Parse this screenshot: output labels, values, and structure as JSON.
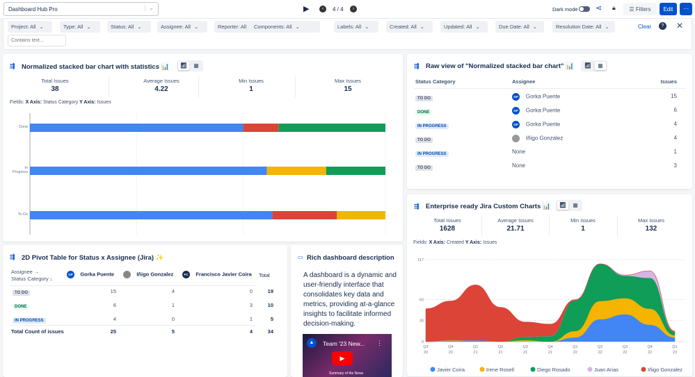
{
  "topbar": {
    "dashboard_name": "Dashboard Hub Pro",
    "page_indicator": "4 / 4",
    "dark_mode_label": "Dark mode",
    "filters_label": "Filters",
    "edit_label": "Edit",
    "more_label": "···"
  },
  "filters": {
    "chips": [
      "Project: All",
      "Type: All",
      "Status: All",
      "Assignee: All",
      "Reporter: All",
      "Components: All",
      "Labels: All",
      "Created: All",
      "Updated: All",
      "Due Date: All",
      "Resolution Date: All"
    ],
    "clear_label": "Clear",
    "text_placeholder": "Contains text..."
  },
  "colors": {
    "blue": "#4285f4",
    "red": "#db4437",
    "yellow": "#f4b400",
    "green": "#0f9d58",
    "lavender": "#d7b4e4",
    "accent": "#0052cc"
  },
  "panel1": {
    "title": "Normalized stacked bar chart with statistics 📊",
    "stats": [
      {
        "label": "Total Issues",
        "value": "38"
      },
      {
        "label": "Average Issues",
        "value": "4.22"
      },
      {
        "label": "Min Issues",
        "value": "1"
      },
      {
        "label": "Max Issues",
        "value": "15"
      }
    ],
    "fields": {
      "x_label": "X Axis:",
      "x_value": "Status Category",
      "y_label": "Y Axis:",
      "y_value": "Issues"
    }
  },
  "chart_data": [
    {
      "type": "bar",
      "orientation": "horizontal",
      "stacked": "normalized",
      "categories": [
        "Done",
        "In Progress",
        "To Do"
      ],
      "xlim": [
        0,
        100
      ],
      "x_ticks": [
        "0",
        "30",
        "60",
        "100"
      ],
      "grid": true,
      "legend_position": "bottom",
      "series": [
        {
          "name": "Gorka Puente",
          "color": "#4285f4",
          "values": [
            6,
            4,
            15
          ]
        },
        {
          "name": "Iñigo Gonzalez",
          "color": "#db4437",
          "values": [
            1,
            0,
            4
          ]
        },
        {
          "name": "None",
          "color": "#f4b400",
          "values": [
            0,
            1,
            3
          ]
        },
        {
          "name": "Francisco Javier Coira",
          "color": "#0f9d58",
          "values": [
            3,
            1,
            0
          ]
        }
      ]
    },
    {
      "type": "area",
      "stacked": true,
      "categories": [
        "Q3 20",
        "Q4 20",
        "Q1 21",
        "Q2 21",
        "Q3 21",
        "Q4 21",
        "Q1 22",
        "Q2 22",
        "Q3 22",
        "Q4 22",
        "Q1 23"
      ],
      "ylim": [
        0,
        117
      ],
      "y_ticks": [
        "0",
        "30",
        "60",
        "117"
      ],
      "grid": true,
      "legend_position": "bottom",
      "series": [
        {
          "name": "Javier Coira",
          "color": "#4285f4",
          "values": [
            0,
            1,
            2,
            0,
            0,
            0,
            6,
            32,
            39,
            24,
            6
          ]
        },
        {
          "name": "Irene Rosell",
          "color": "#f4b400",
          "values": [
            0,
            1,
            0,
            0,
            2,
            0,
            9,
            26,
            23,
            23,
            3
          ]
        },
        {
          "name": "Diego Rosado",
          "color": "#0f9d58",
          "values": [
            0,
            0,
            0,
            0,
            5,
            8,
            44,
            53,
            32,
            44,
            5
          ]
        },
        {
          "name": "Juan Arias",
          "color": "#d7b4e4",
          "values": [
            0,
            0,
            0,
            0,
            0,
            0,
            0,
            0,
            1,
            10,
            0
          ]
        },
        {
          "name": "Iñigo Gonzalez",
          "color": "#db4437",
          "values": [
            47,
            56,
            79,
            49,
            21,
            17,
            1,
            0,
            0,
            0,
            1
          ]
        }
      ]
    }
  ],
  "panel2": {
    "title": "Raw view of \"Normalized stacked bar chart\" 📊",
    "headers": [
      "Status Category",
      "Assignee",
      "Issues"
    ],
    "rows": [
      {
        "status": "TO DO",
        "kind": "todo",
        "assignee": "Gorka Puente",
        "initials": "GP",
        "issues": "15"
      },
      {
        "status": "DONE",
        "kind": "done",
        "assignee": "Gorka Puente",
        "initials": "GP",
        "issues": "6"
      },
      {
        "status": "IN PROGRESS",
        "kind": "prog",
        "assignee": "Gorka Puente",
        "initials": "GP",
        "issues": "4"
      },
      {
        "status": "TO DO",
        "kind": "todo",
        "assignee": "Iñigo Gonzalez",
        "initials": "IG",
        "issues": "4"
      },
      {
        "status": "IN PROGRESS",
        "kind": "prog",
        "assignee": "None",
        "initials": "",
        "issues": "1"
      },
      {
        "status": "TO DO",
        "kind": "todo",
        "assignee": "None",
        "initials": "",
        "issues": "3"
      }
    ]
  },
  "panel3": {
    "title": "Enterprise ready Jira Custom Charts 📊",
    "stats": [
      {
        "label": "Total Issues",
        "value": "1628"
      },
      {
        "label": "Average Issues",
        "value": "21.71"
      },
      {
        "label": "Min Issues",
        "value": "1"
      },
      {
        "label": "Max Issues",
        "value": "132"
      }
    ],
    "fields": {
      "x_label": "X Axis:",
      "x_value": "Created",
      "y_label": "Y Axis:",
      "y_value": "Issues"
    }
  },
  "panel4": {
    "title": "2D Pivot Table for Status x Assignee (Jira) ✨",
    "row_header_1": "Assignee →",
    "row_header_2": "Status Category ↓",
    "columns": [
      {
        "name": "Gorka Puente",
        "initials": "GP",
        "color": "#0052cc"
      },
      {
        "name": "Iñigo Gonzalez",
        "initials": "IG",
        "color": "#888"
      },
      {
        "name": "Francisco Javier Coira",
        "initials": "FC",
        "color": "#172b4d"
      }
    ],
    "total_label": "Total",
    "rows": [
      {
        "status": "TO DO",
        "kind": "todo",
        "values": [
          "15",
          "4",
          "0"
        ],
        "total": "19"
      },
      {
        "status": "DONE",
        "kind": "done",
        "values": [
          "6",
          "1",
          "3"
        ],
        "total": "10"
      },
      {
        "status": "IN PROGRESS",
        "kind": "prog",
        "values": [
          "4",
          "0",
          "1"
        ],
        "total": "5"
      }
    ],
    "footer": {
      "label": "Total Count of issues",
      "values": [
        "25",
        "5",
        "4"
      ],
      "total": "34"
    }
  },
  "panel5": {
    "title": "Rich dashboard description",
    "text": "A dashboard is a dynamic and user-friendly interface that consolidates key data and metrics, providing at-a-glance insights to facilitate informed decision-making.",
    "video_title": "Team '23 New...",
    "video_caption": "Summary of the News"
  }
}
